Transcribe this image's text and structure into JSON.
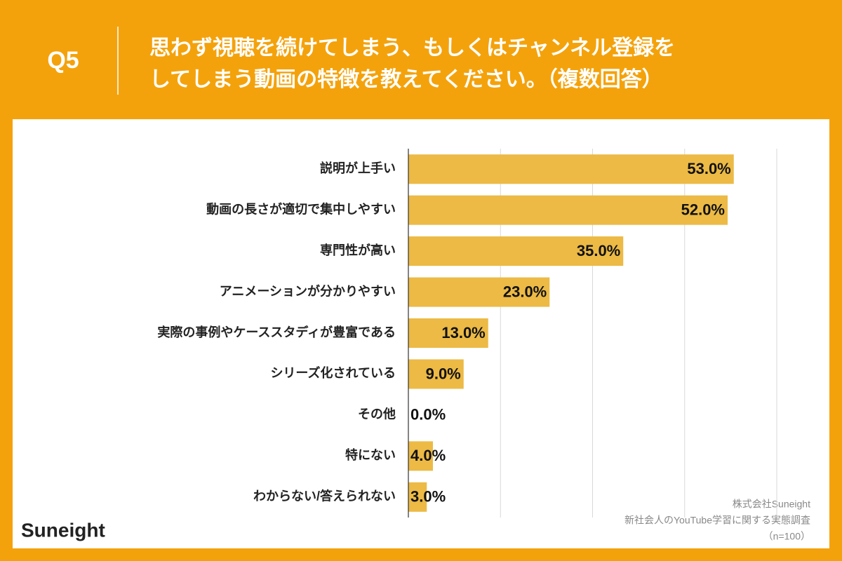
{
  "chart_data": {
    "type": "bar",
    "orientation": "horizontal",
    "question": "Q5",
    "title": [
      "思わず視聴を続けてしまう、もしくはチャンネル登録を",
      "してしまう動画の特徴を教えてください。（複数回答）"
    ],
    "categories": [
      "説明が上手い",
      "動画の長さが適切で集中しやすい",
      "専門性が高い",
      "アニメーションが分かりやすい",
      "実際の事例やケーススタディが豊富である",
      "シリーズ化されている",
      "その他",
      "特にない",
      "わからない/答えられない"
    ],
    "values": [
      53,
      52,
      35,
      23,
      13,
      9,
      0,
      4,
      3
    ],
    "value_labels": [
      "53.0%",
      "52.0%",
      "35.0%",
      "23.0%",
      "13.0%",
      "9.0%",
      "0.0%",
      "4.0%",
      "3.0%"
    ],
    "color": "#ecba45",
    "xlim": [
      0,
      60
    ],
    "xticks": [
      0,
      15,
      30,
      45,
      60
    ],
    "grid": true,
    "notes": [
      "株式会社Suneight",
      "新社会人のYouTube学習に関する実態調査",
      "（n=100）"
    ],
    "brand": "Suneight"
  }
}
